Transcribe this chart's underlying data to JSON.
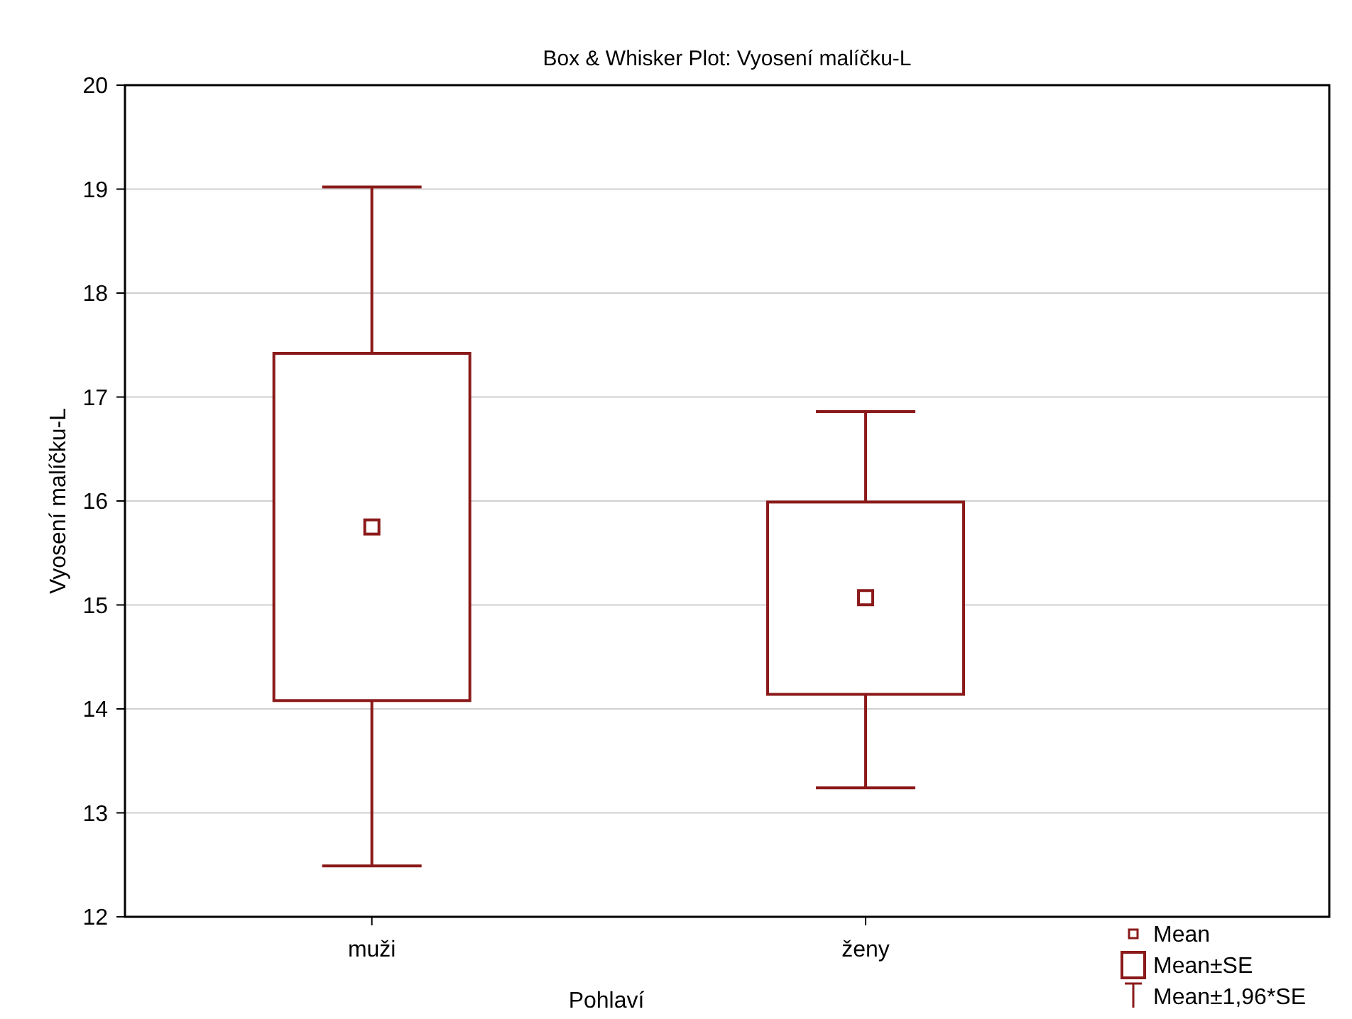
{
  "chart_data": {
    "type": "box",
    "title": "Box & Whisker Plot: Vyosení malíčku-L",
    "xlabel": "Pohlaví",
    "ylabel": "Vyosení malíčku-L",
    "categories": [
      "muži",
      "ženy"
    ],
    "boxes": [
      {
        "low": 12.49,
        "q1": 14.08,
        "median": 15.75,
        "q3": 17.42,
        "high": 19.02
      },
      {
        "low": 13.24,
        "q1": 14.14,
        "median": 15.07,
        "q3": 15.99,
        "high": 16.86
      }
    ],
    "color": "#8b1a1a",
    "ylim": [
      12,
      20
    ],
    "yticks": [
      12,
      13,
      14,
      15,
      16,
      17,
      18,
      19,
      20
    ],
    "grid": "y",
    "annotations": [
      "Mean",
      "Mean±SE",
      "Mean±1,96*SE"
    ]
  }
}
